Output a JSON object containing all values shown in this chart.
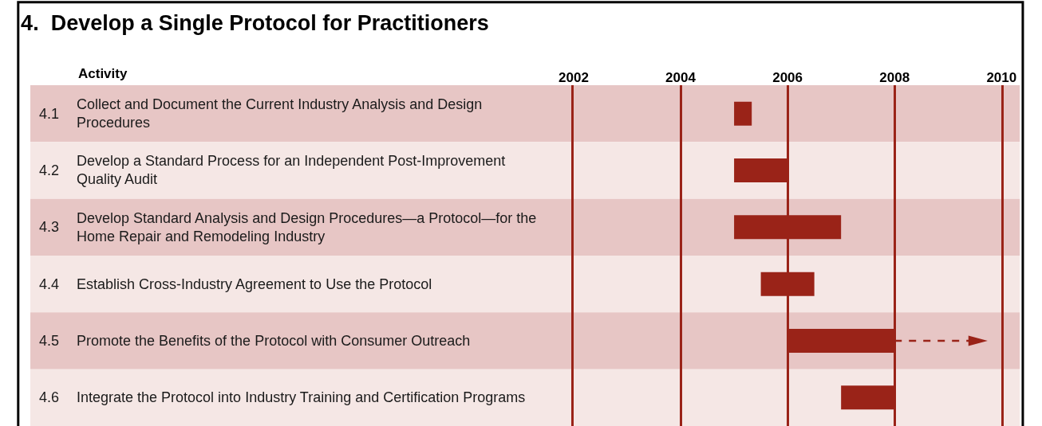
{
  "chart_data": {
    "type": "bar",
    "orientation": "horizontal",
    "title": "4.  Develop a Single Protocol for Practitioners",
    "annotations": [
      "Activity"
    ],
    "categories": [
      "4.1 Collect and Document the Current Industry Analysis and Design\nProcedures",
      "4.2 Develop a Standard Process for an Independent Post-Improvement\nQuality Audit",
      "4.3 Develop Standard Analysis and Design Procedures—a Protocol—for the\nHome Repair and Remodeling Industry",
      "4.4 Establish Cross-Industry Agreement to Use the Protocol",
      "4.5 Promote the Benefits of the Protocol with Consumer Outreach",
      "4.6 Integrate the Protocol into Industry Training and Certification Programs"
    ],
    "series": [
      {
        "color": "#9a2318",
        "base": [
          2005.0,
          2005.0,
          2005.0,
          2005.5,
          2006.0,
          2007.0
        ],
        "values": [
          0.33,
          1.0,
          2.0,
          1.0,
          2.0,
          1.0
        ]
      }
    ],
    "xlim": [
      2002,
      2010
    ],
    "xticks": [
      2002,
      2004,
      2006,
      2008,
      2010
    ],
    "grid": "x"
  }
}
